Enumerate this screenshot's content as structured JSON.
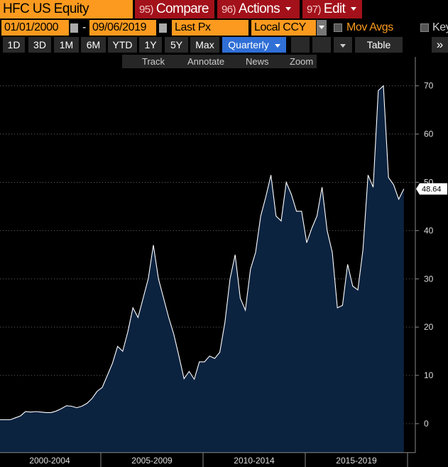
{
  "header": {
    "ticker": "HFC US Equity",
    "tabs": [
      {
        "num": "95)",
        "label": "Compare"
      },
      {
        "num": "96)",
        "label": "Actions"
      },
      {
        "num": "97)",
        "label": "Edit"
      }
    ]
  },
  "controls": {
    "start_date": "01/01/2000",
    "date_separator": "-",
    "end_date": "09/06/2019",
    "price_field": "Last Px",
    "currency": "Local CCY",
    "mov_avgs": "Mov Avgs",
    "key": "Key"
  },
  "periods": {
    "buttons": [
      "1D",
      "3D",
      "1M",
      "6M",
      "YTD",
      "1Y",
      "5Y",
      "Max"
    ],
    "frequency": "Quarterly",
    "table": "Table",
    "more": "»"
  },
  "tools": [
    "Track",
    "Annotate",
    "News",
    "Zoom"
  ],
  "chart_data": {
    "type": "area",
    "color": "#ffffff",
    "fill": "#0c2340",
    "grid": true,
    "x_labels": [
      "2000-2004",
      "2005-2009",
      "2010-2014",
      "2015-2019"
    ],
    "values": [
      0.8,
      0.8,
      0.8,
      1.2,
      1.6,
      2.5,
      2.4,
      2.5,
      2.4,
      2.3,
      2.3,
      2.6,
      3.1,
      3.7,
      3.6,
      3.3,
      3.6,
      4.2,
      5.2,
      6.7,
      7.5,
      10,
      12.5,
      16,
      15,
      19,
      24,
      22,
      26,
      30,
      37,
      30,
      26,
      22,
      18.5,
      14,
      9.3,
      10.8,
      9.2,
      12.8,
      12.8,
      14,
      13.5,
      14.8,
      21,
      30,
      35,
      26,
      23.5,
      32,
      35.5,
      43,
      47,
      51.5,
      43,
      42,
      50,
      47.5,
      44,
      44,
      37.5,
      40.5,
      43,
      49,
      40,
      35.5,
      24,
      24.5,
      33,
      28.5,
      27.7,
      36,
      51.5,
      49,
      69,
      70,
      51,
      49.5,
      46.5,
      48.64
    ],
    "ylim": [
      -6,
      76
    ],
    "yticks": [
      0,
      10,
      20,
      30,
      40,
      50,
      60,
      70
    ]
  }
}
